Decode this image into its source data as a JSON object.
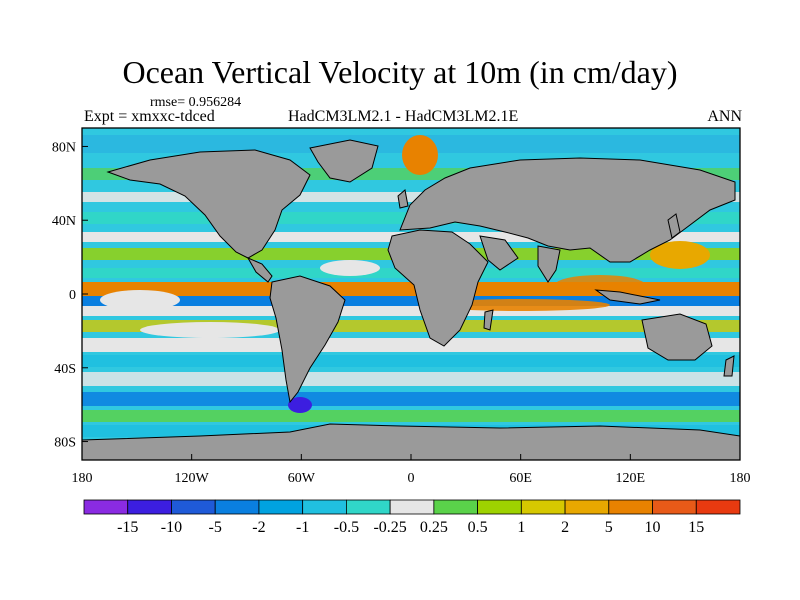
{
  "title": "Ocean Vertical Velocity at 10m (in cm/day)",
  "rmse_text": "rmse= 0.956284",
  "expt_text": "Expt = xmxxc-tdced",
  "models_text": "HadCM3LM2.1 - HadCM3LM2.1E",
  "season_text": "ANN",
  "map": {
    "projection": "cylindrical-equidistant",
    "lon_range": [
      -180,
      180
    ],
    "lat_range": [
      -90,
      90
    ],
    "land_color": "#9a9a9a",
    "y_ticks": [
      {
        "label": "80N",
        "lat": 80
      },
      {
        "label": "40N",
        "lat": 40
      },
      {
        "label": "0",
        "lat": 0
      },
      {
        "label": "40S",
        "lat": -40
      },
      {
        "label": "80S",
        "lat": -80
      }
    ],
    "x_ticks": [
      {
        "label": "180",
        "lon": -180
      },
      {
        "label": "120W",
        "lon": -120
      },
      {
        "label": "60W",
        "lon": -60
      },
      {
        "label": "0",
        "lon": 0
      },
      {
        "label": "60E",
        "lon": 60
      },
      {
        "label": "120E",
        "lon": 120
      },
      {
        "label": "180",
        "lon": 180
      }
    ]
  },
  "colorbar": {
    "colors": [
      "#8a2be2",
      "#3c1ee0",
      "#1f5ad8",
      "#0a7fe0",
      "#00a2e0",
      "#20c0e0",
      "#30d6c8",
      "#e6e6e6",
      "#5ad24a",
      "#9ed200",
      "#d6c800",
      "#e8a800",
      "#e88200",
      "#e85a18",
      "#e83a10"
    ],
    "labels": [
      "-15",
      "-10",
      "-5",
      "-2",
      "-1",
      "-0.5",
      "-0.25",
      "0.25",
      "0.5",
      "1",
      "2",
      "5",
      "10",
      "15"
    ]
  }
}
